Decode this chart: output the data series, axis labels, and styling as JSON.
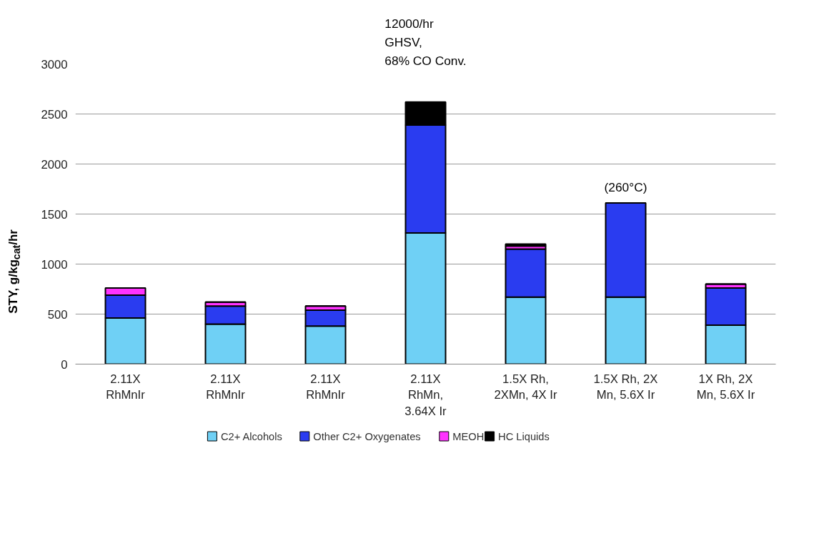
{
  "chart_data": {
    "type": "bar",
    "stacked": true,
    "ylabel": "STY, g/kg$_{cat}$/hr",
    "categories": [
      "2.11X\nRhMnIr",
      "2.11X\nRhMnIr",
      "2.11X\nRhMnIr",
      "2.11X\nRhMn,\n3.64X Ir",
      "1.5X Rh,\n2XMn, 4X Ir",
      "1.5X Rh, 2X\nMn, 5.6X Ir",
      "1X Rh, 2X\nMn, 5.6X Ir"
    ],
    "series": [
      {
        "name": "C2+ Alcohols",
        "color": "#6fd0f5",
        "values": [
          460,
          400,
          380,
          1310,
          670,
          670,
          390
        ]
      },
      {
        "name": "Other C2+ Oxygenates",
        "color": "#2a3cf0",
        "values": [
          230,
          180,
          160,
          1080,
          480,
          940,
          370
        ]
      },
      {
        "name": "MEOH",
        "color": "#ff33ff",
        "values": [
          70,
          40,
          40,
          0,
          30,
          0,
          40
        ]
      },
      {
        "name": "HC Liquids",
        "color": "#000000",
        "values": [
          0,
          0,
          0,
          230,
          20,
          0,
          0
        ]
      }
    ],
    "ylim": [
      0,
      3000
    ],
    "yticks": [
      0,
      500,
      1000,
      1500,
      2000,
      2500,
      3000
    ],
    "grid": "y",
    "legend": "bottom",
    "annotations": [
      {
        "text": "12000/hr\nGHSV,\n68% CO Conv.",
        "x": "2.11X\nRhMn,\n3.64X Ir",
        "y": 2615
      },
      {
        "text": "(260°C)",
        "x": "1.5X Rh, 2X\nMn, 5.6X Ir",
        "y": 1610
      }
    ]
  }
}
